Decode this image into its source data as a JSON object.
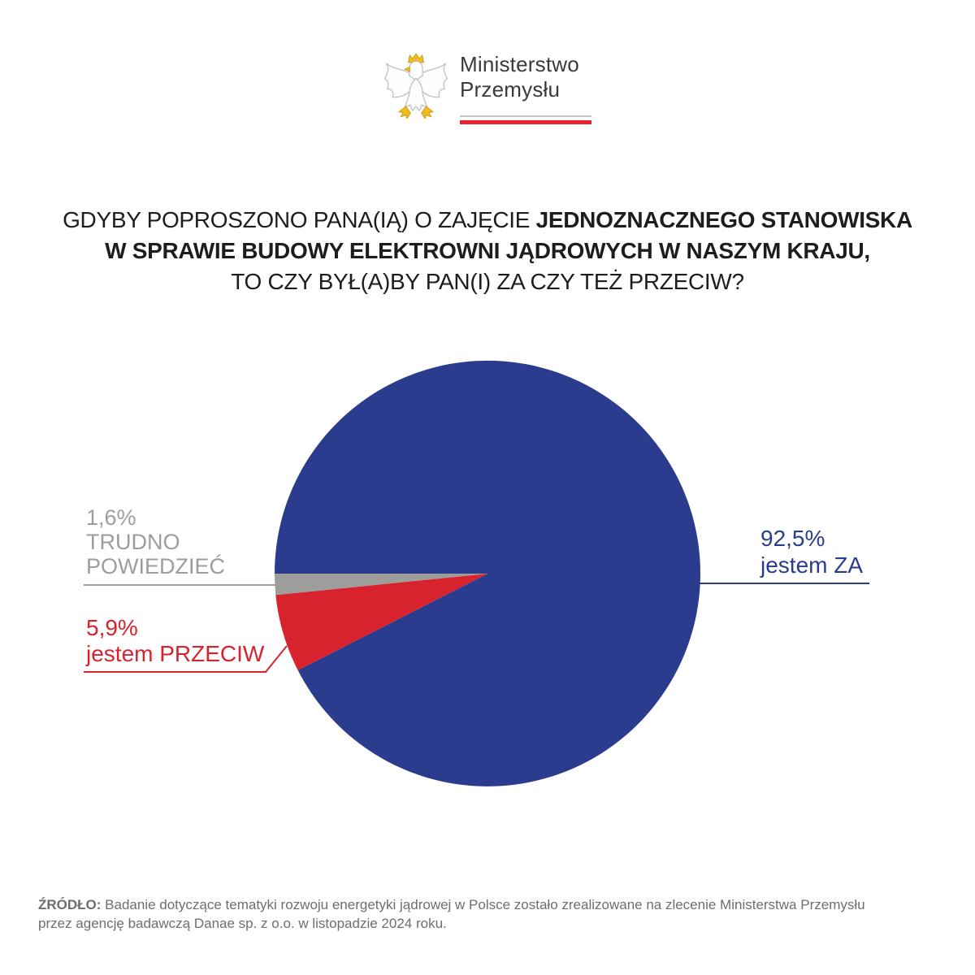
{
  "header": {
    "org_name_line1": "Ministerstwo",
    "org_name_line2": "Przemysłu",
    "emblem": "polish-white-eagle-coat-of-arms",
    "flag_underline_colors": {
      "top_bar": "#c7c7c7",
      "bottom_bar": "#e8232e"
    }
  },
  "title": {
    "line1_regular": "GDYBY POPROSZONO PANA(IĄ) O ZAJĘCIE ",
    "line1_bold": "JEDNOZNACZNEGO STANOWISKA",
    "line2_bold": "W SPRAWIE BUDOWY ELEKTROWNI JĄDROWYCH W NASZYM KRAJU,",
    "line3_regular": "TO CZY BYŁ(A)BY PAN(I) ZA CZY TEŻ PRZECIW?"
  },
  "chart_data": {
    "type": "pie",
    "title": "GDYBY POPROSZONO PANA(IĄ) O ZAJĘCIE JEDNOZNACZNEGO STANOWISKA W SPRAWIE BUDOWY ELEKTROWNI JĄDROWYCH W NASZYM KRAJU, TO CZY BYŁ(A)BY PAN(I) ZA CZY TEŻ PRZECIW?",
    "start_angle_deg": 180,
    "direction": "clockwise-from-west",
    "legend_position": "labels-around-pie",
    "slices": [
      {
        "label": "jestem ZA",
        "display_value": "92,5%",
        "value": 92.5,
        "color": "#2b3c8f"
      },
      {
        "label": "jestem PRZECIW",
        "display_value": "5,9%",
        "value": 5.9,
        "color": "#d8232e"
      },
      {
        "label": "TRUDNO POWIEDZIEĆ",
        "label_lines": [
          "TRUDNO",
          "POWIEDZIEĆ"
        ],
        "display_value": "1,6%",
        "value": 1.6,
        "color": "#9d9d9c"
      }
    ]
  },
  "footer": {
    "source_prefix": "ŹRÓDŁO:",
    "source_line1": " Badanie dotyczące tematyki rozwoju energetyki jądrowej w Polsce zostało zrealizowane na zlecenie Ministerstwa Przemysłu",
    "source_line2": "przez agencję badawczą Danae sp. z o.o. w listopadzie 2024 roku."
  }
}
